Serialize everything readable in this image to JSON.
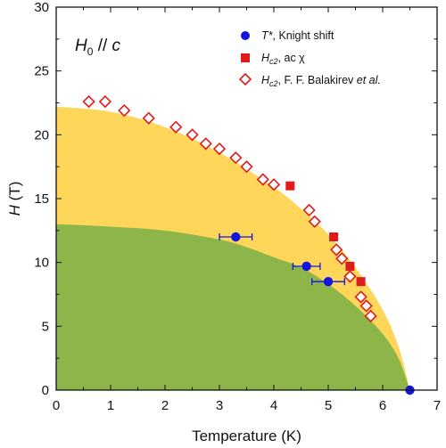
{
  "chart_data": {
    "type": "scatter",
    "xlabel": "Temperature (K)",
    "ylabel_main": "H",
    "ylabel_unit": " (T)",
    "xlim": [
      0,
      7
    ],
    "ylim": [
      0,
      30
    ],
    "xticks": [
      0,
      1,
      2,
      3,
      4,
      5,
      6,
      7
    ],
    "yticks": [
      0,
      5,
      10,
      15,
      20,
      25,
      30
    ],
    "grid": false,
    "legend_position": "top-right",
    "annotation": {
      "main": "H",
      "sub": "0",
      "rest": " // ",
      "var": "c"
    },
    "regions": [
      {
        "name": "upper-phase-region",
        "color": "#FDD65A",
        "boundary": [
          [
            0,
            22.2
          ],
          [
            1,
            21.8
          ],
          [
            2,
            20.6
          ],
          [
            3,
            18.6
          ],
          [
            4,
            15.9
          ],
          [
            4.5,
            14.2
          ],
          [
            5,
            12.2
          ],
          [
            5.5,
            9.6
          ],
          [
            6,
            6.3
          ],
          [
            6.3,
            3.3
          ],
          [
            6.5,
            0
          ]
        ]
      },
      {
        "name": "lower-phase-region",
        "color": "#8DB54A",
        "boundary": [
          [
            0,
            13.0
          ],
          [
            1,
            12.8
          ],
          [
            2,
            12.5
          ],
          [
            3,
            11.8
          ],
          [
            3.5,
            11.2
          ],
          [
            4,
            10.4
          ],
          [
            4.5,
            9.6
          ],
          [
            5,
            8.3
          ],
          [
            5.5,
            6.6
          ],
          [
            6,
            4.4
          ],
          [
            6.3,
            2.4
          ],
          [
            6.5,
            0
          ]
        ]
      }
    ],
    "series": [
      {
        "name": "T*",
        "name_suffix": ", Knight shift",
        "marker": "circle",
        "color": "#1515E0",
        "points": [
          {
            "x": 3.3,
            "y": 12.0,
            "xerr": 0.3
          },
          {
            "x": 4.6,
            "y": 9.7,
            "xerr": 0.25
          },
          {
            "x": 5.0,
            "y": 8.5,
            "xerr": 0.3
          },
          {
            "x": 6.5,
            "y": 0,
            "xerr": 0
          }
        ]
      },
      {
        "name": "Hc2",
        "name_suffix": ", ac χ",
        "marker": "square",
        "color": "#E01B1B",
        "points": [
          {
            "x": 4.3,
            "y": 16.0
          },
          {
            "x": 5.1,
            "y": 12.0
          },
          {
            "x": 5.4,
            "y": 9.7
          },
          {
            "x": 5.6,
            "y": 8.5
          }
        ]
      },
      {
        "name": "Hc2",
        "name_suffix": ", F. F. Balakirev ",
        "name_suffix_italic": "et al.",
        "marker": "diamond-open",
        "color": "#E01B1B",
        "points": [
          {
            "x": 0.6,
            "y": 22.6
          },
          {
            "x": 0.9,
            "y": 22.6
          },
          {
            "x": 1.25,
            "y": 21.9
          },
          {
            "x": 1.7,
            "y": 21.3
          },
          {
            "x": 2.2,
            "y": 20.6
          },
          {
            "x": 2.5,
            "y": 20.0
          },
          {
            "x": 2.75,
            "y": 19.3
          },
          {
            "x": 3.0,
            "y": 18.9
          },
          {
            "x": 3.3,
            "y": 18.2
          },
          {
            "x": 3.5,
            "y": 17.5
          },
          {
            "x": 3.8,
            "y": 16.5
          },
          {
            "x": 4.0,
            "y": 16.1
          },
          {
            "x": 4.65,
            "y": 14.1
          },
          {
            "x": 4.75,
            "y": 13.2
          },
          {
            "x": 5.15,
            "y": 11.0
          },
          {
            "x": 5.25,
            "y": 10.3
          },
          {
            "x": 5.4,
            "y": 8.9
          },
          {
            "x": 5.6,
            "y": 7.3
          },
          {
            "x": 5.7,
            "y": 6.6
          },
          {
            "x": 5.78,
            "y": 5.8
          }
        ]
      }
    ]
  }
}
